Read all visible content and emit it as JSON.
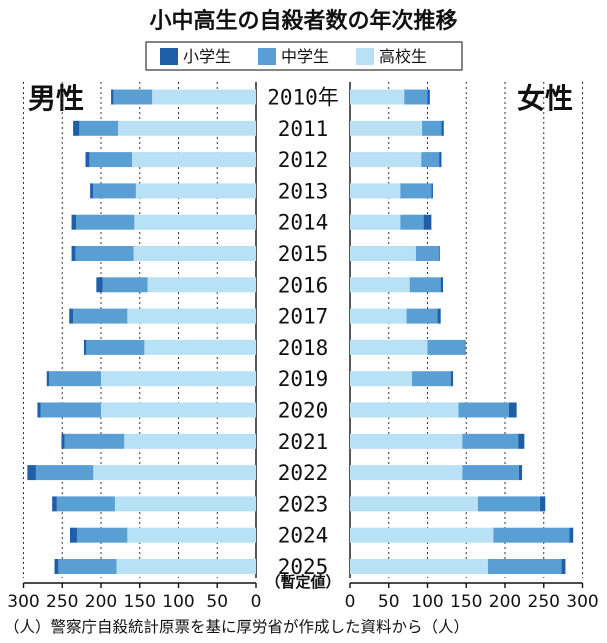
{
  "chart_data": {
    "type": "bar",
    "orientation": "horizontal",
    "stacked": true,
    "layout_kind": "back-to-back",
    "title": "小中高生の自殺者数の年次推移",
    "legend": [
      "小学生",
      "中学生",
      "高校生"
    ],
    "colors": {
      "小学生": "#1f5fa8",
      "中学生": "#5a9fd4",
      "高校生": "#b9e1f5"
    },
    "panels": {
      "male": {
        "label": "男性",
        "axis_ticks": [
          "300",
          "250",
          "200",
          "150",
          "100",
          "50",
          "0"
        ],
        "xlim": [
          0,
          300
        ]
      },
      "female": {
        "label": "女性",
        "axis_ticks": [
          "0",
          "50",
          "100",
          "150",
          "200",
          "250",
          "300"
        ],
        "xlim": [
          0,
          300
        ]
      }
    },
    "categories": [
      "2010年",
      "2011",
      "2012",
      "2013",
      "2014",
      "2015",
      "2016",
      "2017",
      "2018",
      "2019",
      "2020",
      "2021",
      "2022",
      "2023",
      "2024",
      "2025"
    ],
    "provisional_note": "（暫定値）",
    "male": {
      "series": [
        {
          "name": "高校生",
          "values": [
            134,
            178,
            160,
            155,
            157,
            158,
            140,
            166,
            144,
            200,
            200,
            170,
            210,
            182,
            166,
            180
          ]
        },
        {
          "name": "中学生",
          "values": [
            50,
            50,
            55,
            55,
            75,
            75,
            58,
            70,
            75,
            67,
            78,
            77,
            74,
            75,
            65,
            75
          ]
        },
        {
          "name": "小学生",
          "values": [
            3,
            8,
            5,
            4,
            6,
            5,
            8,
            5,
            3,
            3,
            4,
            4,
            11,
            6,
            9,
            5
          ]
        }
      ]
    },
    "female": {
      "series": [
        {
          "name": "高校生",
          "values": [
            70,
            93,
            92,
            65,
            65,
            85,
            77,
            73,
            100,
            80,
            140,
            145,
            145,
            165,
            185,
            178
          ]
        },
        {
          "name": "中学生",
          "values": [
            30,
            25,
            23,
            40,
            30,
            30,
            40,
            40,
            48,
            50,
            65,
            72,
            73,
            80,
            98,
            95
          ]
        },
        {
          "name": "小学生",
          "values": [
            3,
            3,
            3,
            2,
            10,
            1,
            3,
            4,
            1,
            3,
            10,
            8,
            4,
            7,
            5,
            5
          ]
        }
      ]
    }
  },
  "source_note": "（人）警察庁自殺統計原票を基に厚労省が作成した資料から（人）"
}
